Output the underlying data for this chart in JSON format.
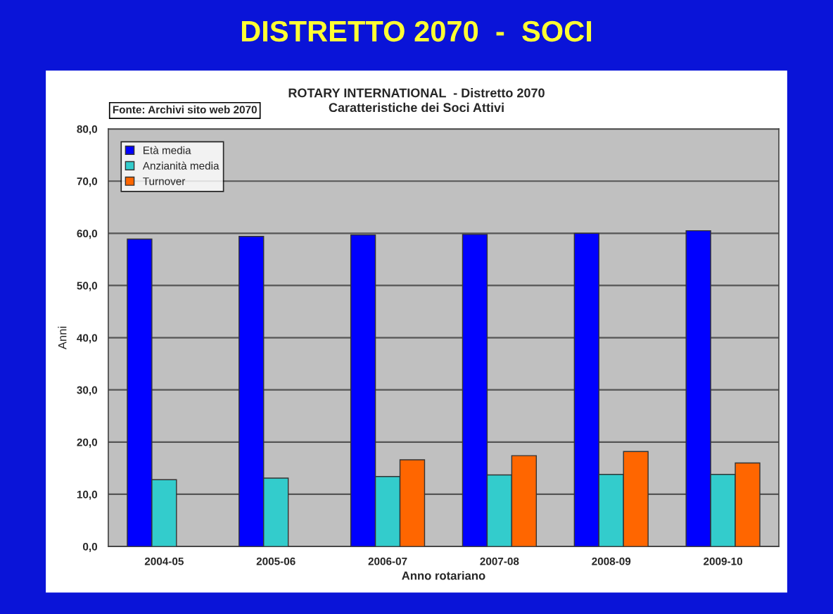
{
  "chart_data": {
    "type": "bar",
    "title": "DISTRETTO 2070  -  SOCI",
    "subtitle": "ROTARY INTERNATIONAL  - Distretto 2070\nCaratteristiche dei Soci Attivi",
    "xlabel": "Anno rotariano",
    "ylabel": "Anni",
    "annotations": [
      "Fonte: Archivi sito web 2070"
    ],
    "categories": [
      "2004-05",
      "2005-06",
      "2006-07",
      "2007-08",
      "2008-09",
      "2009-10"
    ],
    "series": [
      {
        "name": "Età media",
        "color": "#0000ff",
        "values": [
          58.9,
          59.4,
          59.7,
          59.8,
          60.0,
          60.5
        ]
      },
      {
        "name": "Anzianità media",
        "color": "#33cccc",
        "values": [
          12.8,
          13.1,
          13.4,
          13.7,
          13.8,
          13.8
        ]
      },
      {
        "name": "Turnover",
        "color": "#ff6600",
        "values": [
          null,
          null,
          16.6,
          17.4,
          18.2,
          16.0
        ]
      }
    ],
    "ylim": [
      0,
      80
    ],
    "yticks": [
      {
        "value": 0,
        "label": "0,0"
      },
      {
        "value": 10,
        "label": "10,0"
      },
      {
        "value": 20,
        "label": "20,0"
      },
      {
        "value": 30,
        "label": "30,0"
      },
      {
        "value": 40,
        "label": "40,0"
      },
      {
        "value": 50,
        "label": "50,0"
      },
      {
        "value": 60,
        "label": "60,0"
      },
      {
        "value": 70,
        "label": "70,0"
      },
      {
        "value": 80,
        "label": "80,0"
      }
    ],
    "grid": "y",
    "legend": "top left"
  }
}
